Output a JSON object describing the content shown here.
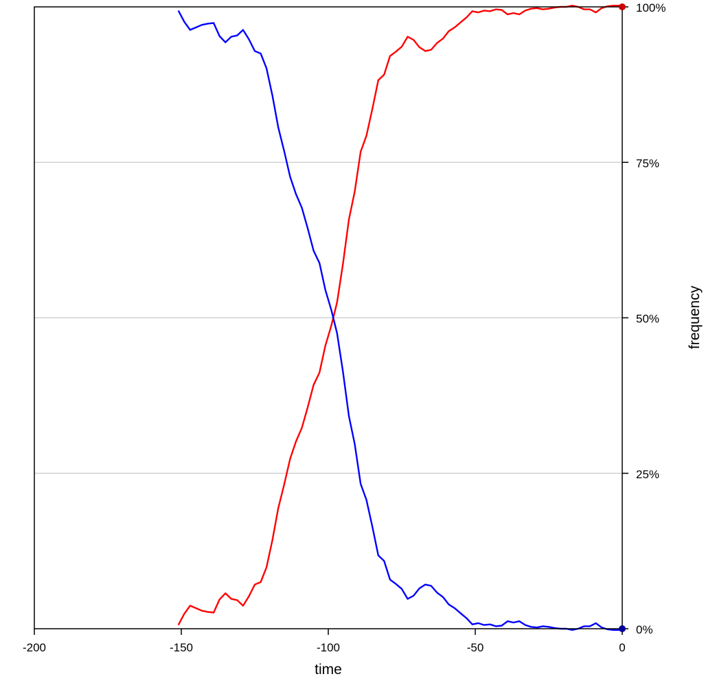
{
  "chart_data": {
    "type": "line",
    "xlabel": "time",
    "ylabel": "frequency",
    "xlim": [
      -200,
      0
    ],
    "ylim": [
      0,
      100
    ],
    "x_ticks": [
      "-200",
      "-150",
      "-100",
      "-50",
      "0"
    ],
    "y_ticks": [
      "0%",
      "25%",
      "50%",
      "75%",
      "100%"
    ],
    "y_tick_values": [
      0,
      25,
      50,
      75,
      100
    ],
    "x_tick_values": [
      -200,
      -150,
      -100,
      -50,
      0
    ],
    "grid": "horizontal",
    "y_axis_position": "right",
    "x": [
      -151,
      -149,
      -147,
      -145,
      -143,
      -141,
      -139,
      -137,
      -135,
      -133,
      -131,
      -129,
      -127,
      -125,
      -123,
      -121,
      -119,
      -117,
      -115,
      -113,
      -111,
      -109,
      -107,
      -105,
      -103,
      -101,
      -99,
      -97,
      -95,
      -93,
      -91,
      -89,
      -87,
      -85,
      -83,
      -81,
      -79,
      -77,
      -75,
      -73,
      -71,
      -69,
      -67,
      -65,
      -63,
      -61,
      -59,
      -57,
      -55,
      -53,
      -51,
      -49,
      -47,
      -45,
      -43,
      -41,
      -39,
      -37,
      -35,
      -33,
      -31,
      -29,
      -27,
      -25,
      -23,
      -21,
      -19,
      -17,
      -15,
      -13,
      -11,
      -9,
      -7,
      -5,
      -3,
      -1,
      0
    ],
    "series": [
      {
        "color": "#ff0000",
        "values": [
          0.6,
          2.4,
          3.7,
          3.3,
          2.9,
          2.7,
          2.6,
          4.7,
          5.7,
          4.8,
          4.6,
          3.7,
          5.2,
          7.1,
          7.5,
          9.9,
          14.3,
          19.4,
          23.2,
          27.3,
          30.1,
          32.3,
          35.6,
          39.2,
          41.2,
          45.5,
          48.7,
          52.5,
          58.7,
          65.8,
          70.3,
          76.7,
          79.3,
          83.6,
          88.2,
          89.1,
          92.1,
          92.8,
          93.6,
          95.2,
          94.7,
          93.5,
          92.9,
          93.1,
          94.2,
          94.9,
          96.1,
          96.7,
          97.5,
          98.3,
          99.3,
          99.1,
          99.4,
          99.3,
          99.6,
          99.5,
          98.8,
          99.0,
          98.8,
          99.4,
          99.7,
          99.8,
          99.6,
          99.7,
          99.9,
          100.0,
          100.0,
          100.2,
          100.0,
          99.6,
          99.6,
          99.1,
          99.8,
          100.1,
          100.2,
          100.2,
          100.0
        ]
      },
      {
        "color": "#0000ff",
        "values": [
          99.4,
          97.6,
          96.3,
          96.7,
          97.1,
          97.3,
          97.4,
          95.3,
          94.3,
          95.2,
          95.4,
          96.3,
          94.8,
          92.9,
          92.5,
          90.1,
          85.7,
          80.6,
          76.8,
          72.7,
          69.9,
          67.7,
          64.4,
          60.8,
          58.8,
          54.5,
          51.3,
          47.5,
          41.3,
          34.2,
          29.7,
          23.3,
          20.7,
          16.4,
          11.8,
          10.9,
          7.9,
          7.2,
          6.4,
          4.8,
          5.3,
          6.5,
          7.1,
          6.9,
          5.8,
          5.1,
          3.9,
          3.3,
          2.5,
          1.7,
          0.7,
          0.9,
          0.6,
          0.7,
          0.4,
          0.5,
          1.2,
          1.0,
          1.2,
          0.6,
          0.3,
          0.2,
          0.4,
          0.3,
          0.1,
          0.0,
          0.0,
          -0.2,
          0.0,
          0.4,
          0.4,
          0.9,
          0.2,
          -0.1,
          -0.2,
          -0.2,
          0.0
        ]
      }
    ],
    "end_markers": [
      {
        "x": 0,
        "y": 100,
        "color": "#cc0000"
      },
      {
        "x": 0,
        "y": 0,
        "color": "#000099"
      }
    ]
  }
}
